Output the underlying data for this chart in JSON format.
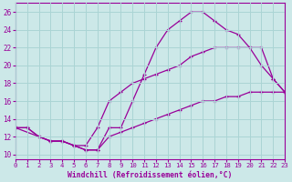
{
  "xlabel": "Windchill (Refroidissement éolien,°C)",
  "bg_color": "#cce8e8",
  "grid_color": "#aad4d4",
  "line_color": "#990099",
  "x_ticks": [
    0,
    1,
    2,
    3,
    4,
    5,
    6,
    7,
    8,
    9,
    10,
    11,
    12,
    13,
    14,
    15,
    16,
    17,
    18,
    19,
    20,
    21,
    22,
    23
  ],
  "y_ticks": [
    10,
    12,
    14,
    16,
    18,
    20,
    22,
    24,
    26
  ],
  "xlim": [
    0,
    23
  ],
  "ylim": [
    9.5,
    27.0
  ],
  "curve1_x": [
    0,
    1,
    2,
    3,
    4,
    5,
    6,
    7,
    8,
    9,
    10,
    11,
    12,
    13,
    14,
    15,
    16,
    17,
    18,
    19,
    20,
    21,
    22,
    23
  ],
  "curve1_y": [
    13,
    13,
    12,
    11.5,
    11.5,
    11,
    10.5,
    10.5,
    13,
    13,
    16,
    19,
    22,
    24,
    25,
    26,
    26,
    25,
    24,
    23.5,
    22,
    20,
    18.5,
    17
  ],
  "curve2_x": [
    0,
    2,
    3,
    4,
    5,
    6,
    7,
    8,
    9,
    10,
    11,
    12,
    13,
    14,
    15,
    16,
    17,
    18,
    19,
    20,
    21,
    22,
    23
  ],
  "curve2_y": [
    13,
    12,
    11.5,
    11.5,
    11,
    11,
    13,
    16,
    17,
    18,
    18.5,
    19,
    19.5,
    20,
    21,
    21.5,
    22,
    22,
    22,
    22,
    22,
    18.5,
    17
  ],
  "curve3_x": [
    0,
    1,
    2,
    3,
    4,
    5,
    6,
    7,
    8,
    9,
    10,
    11,
    12,
    13,
    14,
    15,
    16,
    17,
    18,
    19,
    20,
    21,
    22,
    23
  ],
  "curve3_y": [
    13,
    13,
    12,
    11.5,
    11.5,
    11,
    10.5,
    10.5,
    12,
    12.5,
    13,
    13.5,
    14,
    14.5,
    15,
    15.5,
    16,
    16,
    16.5,
    16.5,
    17,
    17,
    17,
    17
  ]
}
